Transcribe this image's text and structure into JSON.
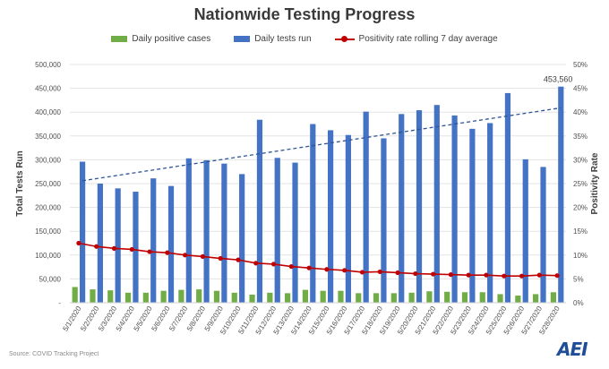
{
  "source": "Source: COVID Tracking Project",
  "logo_text": "AEI",
  "colors": {
    "positive": "#70ad47",
    "tests": "#4472c4",
    "rate": "#c00000",
    "trend": "#2f5597"
  },
  "chart_data": {
    "type": "bar",
    "title": "Nationwide Testing Progress",
    "ylabel": "Total Tests Run",
    "y2label": "Positivity Rate",
    "ylim": [
      0,
      500000
    ],
    "y2lim": [
      0,
      0.5
    ],
    "yticks": [
      "-",
      "50,000",
      "100,000",
      "150,000",
      "200,000",
      "250,000",
      "300,000",
      "350,000",
      "400,000",
      "450,000",
      "500,000"
    ],
    "y2ticks": [
      "0%",
      "5%",
      "10%",
      "15%",
      "20%",
      "25%",
      "30%",
      "35%",
      "40%",
      "45%",
      "50%"
    ],
    "categories": [
      "5/1/2020",
      "5/2/2020",
      "5/3/2020",
      "5/4/2020",
      "5/5/2020",
      "5/6/2020",
      "5/7/2020",
      "5/8/2020",
      "5/9/2020",
      "5/10/2020",
      "5/11/2020",
      "5/12/2020",
      "5/13/2020",
      "5/14/2020",
      "5/15/2020",
      "5/16/2020",
      "5/17/2020",
      "5/18/2020",
      "5/19/2020",
      "5/20/2020",
      "5/21/2020",
      "5/22/2020",
      "5/23/2020",
      "5/24/2020",
      "5/25/2020",
      "5/26/2020",
      "5/27/2020",
      "5/28/2020"
    ],
    "series": [
      {
        "name": "Daily positive cases",
        "kind": "bar",
        "values": [
          33000,
          28000,
          26000,
          21000,
          21000,
          25000,
          27000,
          28000,
          25000,
          21000,
          17000,
          21000,
          20000,
          27000,
          25000,
          25000,
          20000,
          20000,
          20000,
          21000,
          24000,
          23000,
          22000,
          22000,
          18000,
          15000,
          18000,
          22000
        ]
      },
      {
        "name": "Daily tests run",
        "kind": "bar",
        "values": [
          296000,
          250000,
          240000,
          233000,
          261000,
          245000,
          303000,
          299000,
          292000,
          270000,
          384000,
          304000,
          294000,
          375000,
          362000,
          352000,
          401000,
          345000,
          396000,
          404000,
          415000,
          393000,
          365000,
          377000,
          440000,
          301000,
          285000,
          453560
        ]
      },
      {
        "name": "Positivity rate rolling 7 day average",
        "kind": "line",
        "axis": "secondary",
        "values": [
          0.125,
          0.118,
          0.114,
          0.112,
          0.107,
          0.105,
          0.1,
          0.097,
          0.093,
          0.09,
          0.083,
          0.081,
          0.076,
          0.073,
          0.07,
          0.068,
          0.064,
          0.065,
          0.063,
          0.061,
          0.06,
          0.059,
          0.058,
          0.058,
          0.056,
          0.056,
          0.058,
          0.057
        ]
      }
    ],
    "trendline": {
      "series": "Daily tests run",
      "style": "dashed",
      "start": 256000,
      "end": 409000
    },
    "annotations": [
      {
        "category": "5/28/2020",
        "text": "453,560"
      }
    ]
  }
}
